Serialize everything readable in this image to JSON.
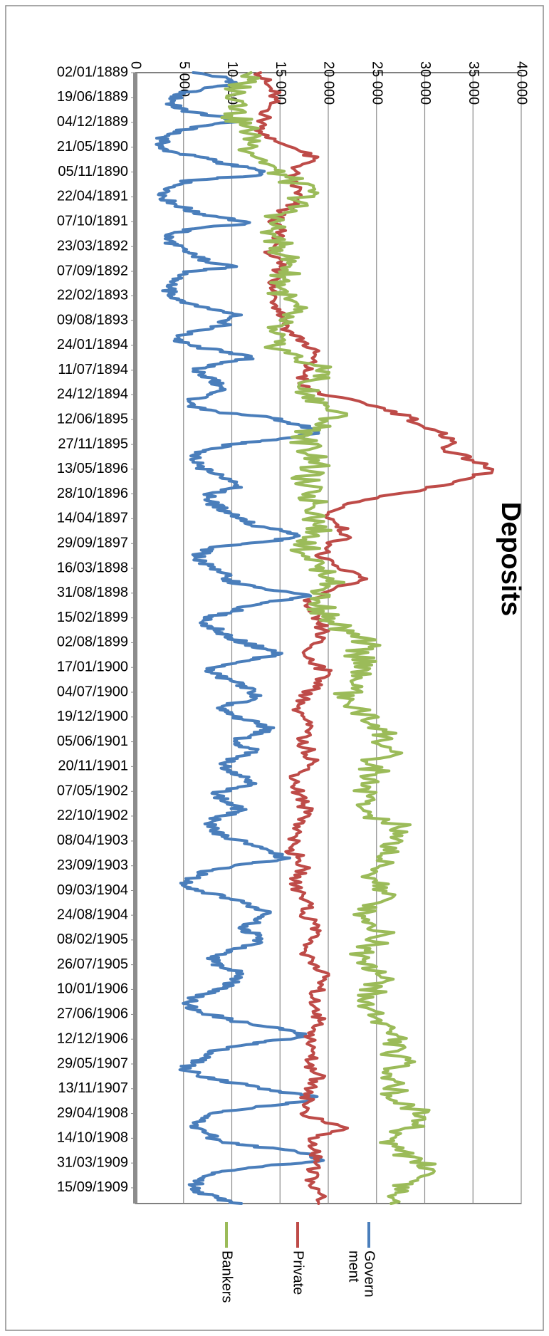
{
  "chart_data": {
    "type": "line",
    "title": "Deposits",
    "xlabel": "",
    "ylabel": "",
    "ylim": [
      0,
      40000
    ],
    "y_ticks": [
      {
        "value": 0,
        "label": "0"
      },
      {
        "value": 5000,
        "label": "5 000"
      },
      {
        "value": 10000,
        "label": "10 000"
      },
      {
        "value": 15000,
        "label": "15 000"
      },
      {
        "value": 20000,
        "label": "20 000"
      },
      {
        "value": 25000,
        "label": "25 000"
      },
      {
        "value": 30000,
        "label": "30 000"
      },
      {
        "value": 35000,
        "label": "35 000"
      },
      {
        "value": 40000,
        "label": "40 000"
      }
    ],
    "x_tick_labels": [
      "02/01/1889",
      "19/06/1889",
      "04/12/1889",
      "21/05/1890",
      "05/11/1890",
      "22/04/1891",
      "07/10/1891",
      "23/03/1892",
      "07/09/1892",
      "22/02/1893",
      "09/08/1893",
      "24/01/1894",
      "11/07/1894",
      "24/12/1894",
      "12/06/1895",
      "27/11/1895",
      "13/05/1896",
      "28/10/1896",
      "14/04/1897",
      "29/09/1897",
      "16/03/1898",
      "31/08/1898",
      "15/02/1899",
      "02/08/1899",
      "17/01/1900",
      "04/07/1900",
      "19/12/1900",
      "05/06/1901",
      "20/11/1901",
      "07/05/1902",
      "22/10/1902",
      "08/04/1903",
      "23/09/1903",
      "09/03/1904",
      "24/08/1904",
      "08/02/1905",
      "26/07/1905",
      "10/01/1906",
      "27/06/1906",
      "12/12/1906",
      "29/05/1907",
      "13/11/1907",
      "29/04/1908",
      "14/10/1908",
      "31/03/1909",
      "15/09/1909"
    ],
    "x_tick_values": [
      1889.0,
      1889.461,
      1889.923,
      1890.384,
      1890.845,
      1891.306,
      1891.768,
      1892.229,
      1892.69,
      1893.142,
      1893.603,
      1894.064,
      1894.526,
      1894.978,
      1895.441,
      1895.904,
      1896.363,
      1896.822,
      1897.283,
      1897.745,
      1898.205,
      1898.665,
      1899.125,
      1899.585,
      1900.045,
      1900.505,
      1900.965,
      1901.425,
      1901.885,
      1902.347,
      1902.805,
      1903.268,
      1903.728,
      1904.188,
      1904.646,
      1905.105,
      1905.565,
      1906.025,
      1906.488,
      1906.948,
      1907.408,
      1907.868,
      1908.328,
      1908.788,
      1909.248,
      1909.708
    ],
    "x_units": "year",
    "x_range": [
      1889.0,
      1910.0
    ],
    "grid": true,
    "legend_position": "bottom",
    "series": [
      {
        "name": "Govern ment",
        "color": "#4a7ebb",
        "x": [
          1889.0,
          1889.1,
          1889.2,
          1889.3,
          1889.4,
          1889.5,
          1889.6,
          1889.7,
          1889.8,
          1889.9,
          1890.0,
          1890.1,
          1890.2,
          1890.3,
          1890.4,
          1890.5,
          1890.6,
          1890.7,
          1890.8,
          1890.9,
          1891.0,
          1891.1,
          1891.2,
          1891.3,
          1891.4,
          1891.5,
          1891.6,
          1891.7,
          1891.8,
          1891.9,
          1892.0,
          1892.1,
          1892.2,
          1892.3,
          1892.4,
          1892.5,
          1892.6,
          1892.7,
          1892.8,
          1892.9,
          1893.0,
          1893.1,
          1893.2,
          1893.3,
          1893.4,
          1893.5,
          1893.6,
          1893.7,
          1893.8,
          1893.9,
          1894.0,
          1894.1,
          1894.2,
          1894.3,
          1894.4,
          1894.5,
          1894.6,
          1894.7,
          1894.8,
          1894.9,
          1895.0,
          1895.1,
          1895.2,
          1895.3,
          1895.4,
          1895.5,
          1895.6,
          1895.7,
          1895.8,
          1895.9,
          1896.0,
          1896.1,
          1896.2,
          1896.3,
          1896.4,
          1896.5,
          1896.6,
          1896.7,
          1896.8,
          1896.9,
          1897.0,
          1897.1,
          1897.2,
          1897.3,
          1897.4,
          1897.5,
          1897.6,
          1897.7,
          1897.8,
          1897.9,
          1898.0,
          1898.1,
          1898.2,
          1898.3,
          1898.4,
          1898.5,
          1898.6,
          1898.7,
          1898.8,
          1898.9,
          1899.0,
          1899.1,
          1899.2,
          1899.3,
          1899.4,
          1899.5,
          1899.6,
          1899.7,
          1899.8,
          1899.9,
          1900.0,
          1900.1,
          1900.2,
          1900.3,
          1900.4,
          1900.5,
          1900.6,
          1900.7,
          1900.8,
          1900.9,
          1901.0,
          1901.1,
          1901.2,
          1901.3,
          1901.4,
          1901.5,
          1901.6,
          1901.7,
          1901.8,
          1901.9,
          1902.0,
          1902.1,
          1902.2,
          1902.3,
          1902.4,
          1902.5,
          1902.6,
          1902.7,
          1902.8,
          1902.9,
          1903.0,
          1903.1,
          1903.2,
          1903.3,
          1903.4,
          1903.5,
          1903.6,
          1903.7,
          1903.8,
          1903.9,
          1904.0,
          1904.1,
          1904.2,
          1904.3,
          1904.4,
          1904.5,
          1904.6,
          1904.7,
          1904.8,
          1904.9,
          1905.0,
          1905.1,
          1905.2,
          1905.3,
          1905.4,
          1905.5,
          1905.6,
          1905.7,
          1905.8,
          1905.9,
          1906.0,
          1906.1,
          1906.2,
          1906.3,
          1906.4,
          1906.5,
          1906.6,
          1906.7,
          1906.8,
          1906.9,
          1907.0,
          1907.1,
          1907.2,
          1907.3,
          1907.4,
          1907.5,
          1907.6,
          1907.7,
          1907.8,
          1907.9,
          1908.0,
          1908.1,
          1908.2,
          1908.3,
          1908.4,
          1908.5,
          1908.6,
          1908.7,
          1908.8,
          1908.9,
          1909.0,
          1909.1,
          1909.2,
          1909.3,
          1909.4,
          1909.5,
          1909.6,
          1909.7,
          1909.8,
          1909.9,
          1910.0
        ],
        "y": [
          6000,
          9500,
          10500,
          7000,
          4500,
          4000,
          3800,
          5000,
          8000,
          10500,
          6500,
          4000,
          3000,
          3000,
          2500,
          4500,
          7500,
          9500,
          12500,
          13000,
          5500,
          4000,
          3500,
          3000,
          3500,
          5000,
          6000,
          9500,
          11500,
          6000,
          3500,
          3500,
          4000,
          5000,
          6000,
          7500,
          10500,
          5000,
          4500,
          4000,
          3500,
          3500,
          4500,
          6000,
          8000,
          11000,
          9500,
          9000,
          6000,
          4500,
          4500,
          6500,
          10000,
          12000,
          9000,
          6000,
          7000,
          8000,
          8500,
          9000,
          7500,
          5500,
          5500,
          8500,
          14000,
          16000,
          18000,
          19000,
          15000,
          10000,
          7500,
          6000,
          6000,
          6500,
          7500,
          9000,
          10500,
          11000,
          8000,
          7500,
          8000,
          9000,
          10000,
          11500,
          12000,
          15000,
          17000,
          14000,
          8500,
          7000,
          6500,
          7000,
          8000,
          9500,
          9000,
          11000,
          13500,
          18000,
          15000,
          12000,
          10000,
          8000,
          7000,
          8000,
          9000,
          10000,
          11500,
          13500,
          15000,
          12000,
          9000,
          7500,
          8500,
          10000,
          11500,
          12000,
          12500,
          10500,
          8500,
          9500,
          11000,
          13000,
          14000,
          12000,
          10500,
          11000,
          12500,
          10500,
          9500,
          9500,
          10500,
          11500,
          12500,
          9500,
          8500,
          9000,
          10000,
          11000,
          9000,
          8000,
          7500,
          8500,
          9500,
          11500,
          13000,
          14500,
          15500,
          11000,
          8000,
          6500,
          5500,
          5000,
          7000,
          9000,
          11000,
          12500,
          14000,
          13000,
          12000,
          11000,
          12500,
          13000,
          12000,
          9500,
          8500,
          8000,
          9000,
          10500,
          11000,
          10000,
          9500,
          7500,
          6000,
          5500,
          6000,
          8000,
          10000,
          13000,
          16500,
          17500,
          13500,
          9500,
          8000,
          7000,
          6000,
          5000,
          6500,
          8500,
          11500,
          14000,
          18500,
          18000,
          12500,
          9000,
          7500,
          6000,
          6500,
          7500,
          8000,
          10500,
          15500,
          18500,
          19500,
          13500,
          9000,
          7000,
          6500,
          6000,
          7000,
          8500,
          11000
        ]
      },
      {
        "name": "Private",
        "color": "#be4b48",
        "x": [
          1889.0,
          1889.2,
          1889.4,
          1889.6,
          1889.8,
          1890.0,
          1890.2,
          1890.4,
          1890.6,
          1890.8,
          1891.0,
          1891.2,
          1891.4,
          1891.6,
          1891.8,
          1892.0,
          1892.2,
          1892.4,
          1892.6,
          1892.8,
          1893.0,
          1893.2,
          1893.4,
          1893.6,
          1893.8,
          1894.0,
          1894.2,
          1894.4,
          1894.6,
          1894.8,
          1895.0,
          1895.2,
          1895.4,
          1895.6,
          1895.8,
          1896.0,
          1896.2,
          1896.4,
          1896.6,
          1896.8,
          1897.0,
          1897.2,
          1897.4,
          1897.6,
          1897.8,
          1898.0,
          1898.2,
          1898.4,
          1898.6,
          1898.8,
          1899.0,
          1899.2,
          1899.4,
          1899.6,
          1899.8,
          1900.0,
          1900.2,
          1900.4,
          1900.6,
          1900.8,
          1901.0,
          1901.2,
          1901.4,
          1901.6,
          1901.8,
          1902.0,
          1902.2,
          1902.4,
          1902.6,
          1902.8,
          1903.0,
          1903.2,
          1903.4,
          1903.6,
          1903.8,
          1904.0,
          1904.2,
          1904.4,
          1904.6,
          1904.8,
          1905.0,
          1905.2,
          1905.4,
          1905.6,
          1905.8,
          1906.0,
          1906.2,
          1906.4,
          1906.6,
          1906.8,
          1907.0,
          1907.2,
          1907.4,
          1907.6,
          1907.8,
          1908.0,
          1908.2,
          1908.4,
          1908.6,
          1908.8,
          1909.0,
          1909.2,
          1909.4,
          1909.6,
          1909.8,
          1910.0
        ],
        "y": [
          13000,
          13500,
          14500,
          14000,
          13500,
          13000,
          13500,
          16500,
          18500,
          16500,
          16000,
          17000,
          16500,
          15000,
          14500,
          15000,
          14500,
          14000,
          15000,
          15000,
          14000,
          14500,
          15000,
          15500,
          16000,
          17500,
          18500,
          18000,
          17500,
          17000,
          20000,
          25000,
          28500,
          30000,
          33000,
          32000,
          35000,
          37000,
          33000,
          28000,
          22000,
          20000,
          21000,
          22000,
          20000,
          19000,
          21000,
          24000,
          20500,
          17500,
          18000,
          19000,
          19500,
          18500,
          17500,
          19000,
          20000,
          18500,
          17500,
          17000,
          17500,
          18000,
          17000,
          18000,
          18500,
          17000,
          16500,
          17000,
          17500,
          18000,
          17000,
          16500,
          16000,
          17000,
          17500,
          16500,
          17000,
          18000,
          17500,
          18500,
          19000,
          17500,
          18000,
          19000,
          19500,
          19000,
          18500,
          19000,
          19000,
          18500,
          18000,
          18500,
          18000,
          19000,
          18500,
          18000,
          17500,
          18000,
          22000,
          18000,
          18500,
          19000,
          18000,
          18500,
          19000,
          19000
        ]
      },
      {
        "name": "Bankers",
        "color": "#9bbb59",
        "x": [
          1889.0,
          1889.2,
          1889.4,
          1889.6,
          1889.8,
          1890.0,
          1890.2,
          1890.4,
          1890.6,
          1890.8,
          1891.0,
          1891.2,
          1891.4,
          1891.6,
          1891.8,
          1892.0,
          1892.2,
          1892.4,
          1892.6,
          1892.8,
          1893.0,
          1893.2,
          1893.4,
          1893.6,
          1893.8,
          1894.0,
          1894.2,
          1894.4,
          1894.6,
          1894.8,
          1895.0,
          1895.2,
          1895.4,
          1895.6,
          1895.8,
          1896.0,
          1896.2,
          1896.4,
          1896.6,
          1896.8,
          1897.0,
          1897.2,
          1897.4,
          1897.6,
          1897.8,
          1898.0,
          1898.2,
          1898.4,
          1898.6,
          1898.8,
          1899.0,
          1899.2,
          1899.4,
          1899.6,
          1899.8,
          1900.0,
          1900.2,
          1900.4,
          1900.6,
          1900.8,
          1901.0,
          1901.2,
          1901.4,
          1901.6,
          1901.8,
          1902.0,
          1902.2,
          1902.4,
          1902.6,
          1902.8,
          1903.0,
          1903.2,
          1903.4,
          1903.6,
          1903.8,
          1904.0,
          1904.2,
          1904.4,
          1904.6,
          1904.8,
          1905.0,
          1905.2,
          1905.4,
          1905.6,
          1905.8,
          1906.0,
          1906.2,
          1906.4,
          1906.6,
          1906.8,
          1907.0,
          1907.2,
          1907.4,
          1907.6,
          1907.8,
          1908.0,
          1908.2,
          1908.4,
          1908.6,
          1908.8,
          1909.0,
          1909.2,
          1909.4,
          1909.6,
          1909.8,
          1910.0
        ],
        "y": [
          12000,
          11000,
          10500,
          11500,
          10000,
          11500,
          12500,
          12000,
          13000,
          14500,
          16000,
          18000,
          17000,
          15500,
          14000,
          14500,
          15000,
          15500,
          16000,
          15500,
          15000,
          15500,
          16500,
          15000,
          14000,
          14500,
          15500,
          18000,
          20000,
          17000,
          18500,
          20000,
          21000,
          18500,
          17500,
          18000,
          19000,
          18000,
          17500,
          18000,
          18500,
          19000,
          18500,
          19000,
          17500,
          18000,
          19500,
          20500,
          19500,
          19000,
          19500,
          20500,
          22000,
          24000,
          23000,
          24500,
          22500,
          23500,
          21000,
          23000,
          24000,
          26000,
          25500,
          26500,
          24000,
          25000,
          23500,
          24500,
          23000,
          24500,
          27500,
          26500,
          27000,
          25500,
          24500,
          25000,
          26000,
          25500,
          24000,
          24500,
          26000,
          24500,
          23500,
          25000,
          25500,
          25000,
          23500,
          24500,
          25500,
          26500,
          27500,
          26000,
          28000,
          26500,
          27000,
          26500,
          28500,
          30000,
          28000,
          26500,
          27000,
          29500,
          31000,
          28500,
          27000,
          26500
        ]
      }
    ]
  }
}
